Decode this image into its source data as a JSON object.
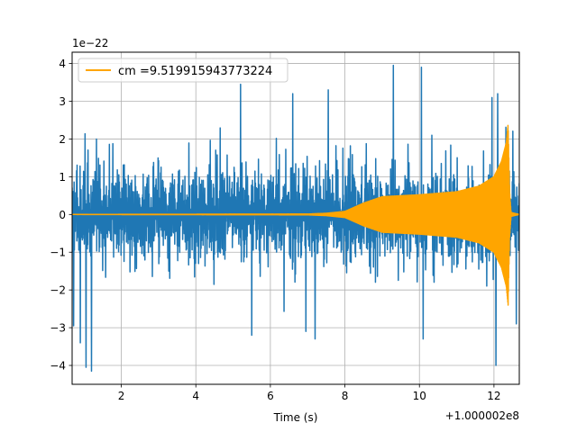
{
  "chart_data": {
    "type": "line",
    "title": "",
    "xlabel": "Time (s)",
    "ylabel": "",
    "x_offset_label": "+1.000002e8",
    "y_scale_label": "1e−22",
    "xlim": [
      0.68,
      12.68
    ],
    "ylim": [
      -4.5,
      4.3
    ],
    "x_ticks": [
      2,
      4,
      6,
      8,
      10,
      12
    ],
    "x_tick_labels": [
      "2",
      "4",
      "6",
      "8",
      "10",
      "12"
    ],
    "y_ticks": [
      -4,
      -3,
      -2,
      -1,
      0,
      1,
      2,
      3,
      4
    ],
    "y_tick_labels": [
      "−4",
      "−3",
      "−2",
      "−1",
      "0",
      "1",
      "2",
      "3",
      "4"
    ],
    "grid": true,
    "legend_position": "top-left",
    "colors": {
      "strain": "#1f77b4",
      "template": "#ffa500"
    },
    "series": [
      {
        "name": "",
        "kind": "noise-strain",
        "color": "#1f77b4",
        "typical_envelope": 2.0,
        "spikes": [
          {
            "x": 1.05,
            "y": -4.05
          },
          {
            "x": 1.2,
            "y": -4.15
          },
          {
            "x": 0.72,
            "y": -2.95
          },
          {
            "x": 0.9,
            "y": -3.4
          },
          {
            "x": 5.2,
            "y": 3.45
          },
          {
            "x": 5.5,
            "y": -3.2
          },
          {
            "x": 6.6,
            "y": 3.2
          },
          {
            "x": 6.95,
            "y": -3.1
          },
          {
            "x": 7.55,
            "y": 3.3
          },
          {
            "x": 7.2,
            "y": -3.3
          },
          {
            "x": 9.3,
            "y": 3.95
          },
          {
            "x": 10.05,
            "y": 3.9
          },
          {
            "x": 10.1,
            "y": -3.3
          },
          {
            "x": 11.95,
            "y": 3.1
          },
          {
            "x": 12.05,
            "y": -4.0
          },
          {
            "x": 12.1,
            "y": 3.2
          },
          {
            "x": 12.6,
            "y": -2.9
          }
        ]
      },
      {
        "name": "cm =9.519915943773224",
        "kind": "chirp-template",
        "color": "#ffa500",
        "amplitude_profile": [
          {
            "x": 0.68,
            "amp": 0.0
          },
          {
            "x": 7.0,
            "amp": 0.01
          },
          {
            "x": 7.5,
            "amp": 0.03
          },
          {
            "x": 8.0,
            "amp": 0.08
          },
          {
            "x": 8.5,
            "amp": 0.3
          },
          {
            "x": 9.0,
            "amp": 0.47
          },
          {
            "x": 10.0,
            "amp": 0.52
          },
          {
            "x": 11.0,
            "amp": 0.6
          },
          {
            "x": 11.6,
            "amp": 0.75
          },
          {
            "x": 12.0,
            "amp": 1.0
          },
          {
            "x": 12.2,
            "amp": 1.4
          },
          {
            "x": 12.33,
            "amp": 1.9
          },
          {
            "x": 12.38,
            "amp": 2.4
          },
          {
            "x": 12.42,
            "amp": 0.6
          },
          {
            "x": 12.46,
            "amp": 0.05
          },
          {
            "x": 12.68,
            "amp": 0.0
          }
        ]
      }
    ]
  }
}
